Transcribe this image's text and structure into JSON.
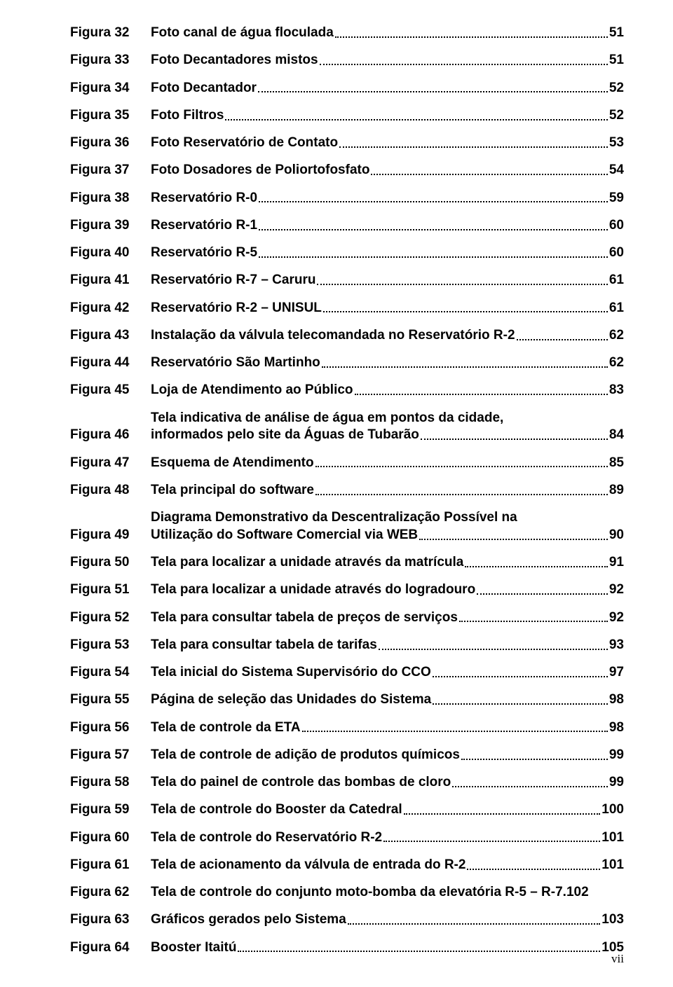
{
  "footer": "vii",
  "entries": [
    {
      "label": "Figura 32",
      "desc": "Foto canal de água floculada",
      "page": "51"
    },
    {
      "label": "Figura 33",
      "desc": "Foto Decantadores mistos",
      "page": "51"
    },
    {
      "label": "Figura 34",
      "desc": "Foto Decantador",
      "page": "52"
    },
    {
      "label": "Figura 35",
      "desc": "Foto Filtros",
      "page": "52"
    },
    {
      "label": "Figura 36",
      "desc": "Foto Reservatório de Contato",
      "page": "53"
    },
    {
      "label": "Figura 37",
      "desc": "Foto Dosadores de Poliortofosfato",
      "page": "54"
    },
    {
      "label": "Figura 38",
      "desc": "Reservatório R-0",
      "page": "59"
    },
    {
      "label": "Figura 39",
      "desc": "Reservatório R-1",
      "page": "60"
    },
    {
      "label": "Figura 40",
      "desc": "Reservatório R-5",
      "page": "60"
    },
    {
      "label": "Figura 41",
      "desc": "Reservatório R-7 – Caruru",
      "page": "61"
    },
    {
      "label": "Figura 42",
      "desc": "Reservatório R-2 – UNISUL",
      "page": "61"
    },
    {
      "label": "Figura 43",
      "desc": "Instalação da válvula telecomandada no Reservatório R-2",
      "page": "62"
    },
    {
      "label": "Figura 44",
      "desc": "Reservatório São Martinho",
      "page": "62"
    },
    {
      "label": "Figura 45",
      "desc": "Loja de Atendimento ao Público",
      "page": "83"
    },
    {
      "label": "Figura 46",
      "desc_lines": [
        "Tela indicativa de análise de água em pontos da cidade,",
        "informados pelo site da Águas de Tubarão"
      ],
      "page": "84"
    },
    {
      "label": "Figura 47",
      "desc": "Esquema de Atendimento",
      "page": "85"
    },
    {
      "label": "Figura 48",
      "desc": "Tela principal do software",
      "page": "89"
    },
    {
      "label": "Figura 49",
      "desc_lines": [
        "Diagrama Demonstrativo da Descentralização Possível na",
        "Utilização do Software Comercial via WEB"
      ],
      "page": "90"
    },
    {
      "label": "Figura 50",
      "desc": "Tela para localizar a unidade através da matrícula",
      "page": "91"
    },
    {
      "label": "Figura 51",
      "desc": "Tela para localizar a unidade através do logradouro",
      "page": "92"
    },
    {
      "label": "Figura 52",
      "desc": "Tela para consultar tabela de preços de serviços",
      "page": "92"
    },
    {
      "label": "Figura 53",
      "desc": "Tela para consultar tabela de tarifas",
      "page": "93"
    },
    {
      "label": "Figura 54",
      "desc": "Tela inicial do Sistema Supervisório do CCO",
      "page": "97"
    },
    {
      "label": "Figura 55",
      "desc": "Página de seleção das Unidades do Sistema",
      "page": "98"
    },
    {
      "label": "Figura 56",
      "desc": "Tela de controle da ETA",
      "page": "98"
    },
    {
      "label": "Figura 57",
      "desc": "Tela de controle de adição de produtos químicos",
      "page": "99"
    },
    {
      "label": "Figura 58",
      "desc": "Tela do painel de controle das bombas de cloro",
      "page": "99"
    },
    {
      "label": "Figura 59",
      "desc": "Tela de controle do Booster da Catedral",
      "page": "100"
    },
    {
      "label": "Figura 60",
      "desc": "Tela de controle do Reservatório R-2",
      "page": "101"
    },
    {
      "label": "Figura 61",
      "desc": "Tela de acionamento da válvula de entrada do R-2",
      "page": "101"
    },
    {
      "label": "Figura 62",
      "desc": "Tela de controle do conjunto moto-bomba da elevatória R-5 – R-7",
      "page": "102",
      "no_leader": true
    },
    {
      "label": "Figura 63",
      "desc": "Gráficos gerados pelo Sistema",
      "page": "103"
    },
    {
      "label": "Figura 64",
      "desc": "Booster Itaitú",
      "page": "105"
    }
  ]
}
